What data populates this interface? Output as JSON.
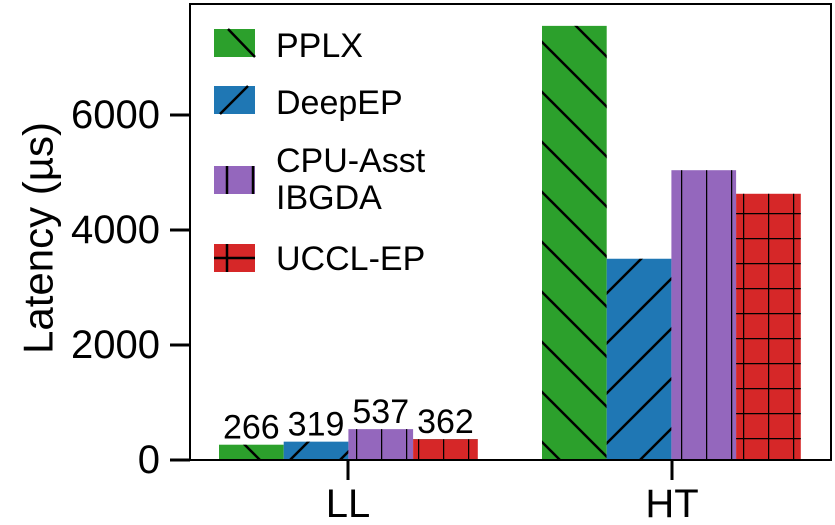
{
  "chart_data": {
    "type": "bar",
    "title": "",
    "xlabel": "",
    "ylabel": "Latency (µs)",
    "ylim": [
      0,
      7900
    ],
    "yticks": [
      0,
      2000,
      4000,
      6000
    ],
    "ytick_labels": [
      "0",
      "2000",
      "4000",
      "6000"
    ],
    "categories": [
      "LL",
      "HT"
    ],
    "grid": false,
    "legend_position": "upper left",
    "series": [
      {
        "name": "PPLX",
        "color": "#2ca02c",
        "hatch": "backslash",
        "values": [
          266,
          7550
        ]
      },
      {
        "name": "DeepEP",
        "color": "#1f77b4",
        "hatch": "slash",
        "values": [
          319,
          3500
        ]
      },
      {
        "name": "CPU-Asst IBGDA",
        "color": "#9467bd",
        "hatch": "vertical",
        "values": [
          537,
          5040
        ]
      },
      {
        "name": "UCCL-EP",
        "color": "#d62728",
        "hatch": "grid",
        "values": [
          362,
          4630
        ]
      }
    ],
    "annotations": [
      {
        "category": "LL",
        "series": "PPLX",
        "text": "266"
      },
      {
        "category": "LL",
        "series": "DeepEP",
        "text": "319"
      },
      {
        "category": "LL",
        "series": "CPU-Asst IBGDA",
        "text": "537"
      },
      {
        "category": "LL",
        "series": "UCCL-EP",
        "text": "362"
      }
    ]
  },
  "legend": {
    "items": [
      {
        "label_lines": [
          "PPLX"
        ]
      },
      {
        "label_lines": [
          "DeepEP"
        ]
      },
      {
        "label_lines": [
          "CPU-Asst",
          "IBGDA"
        ]
      },
      {
        "label_lines": [
          "UCCL-EP"
        ]
      }
    ]
  }
}
